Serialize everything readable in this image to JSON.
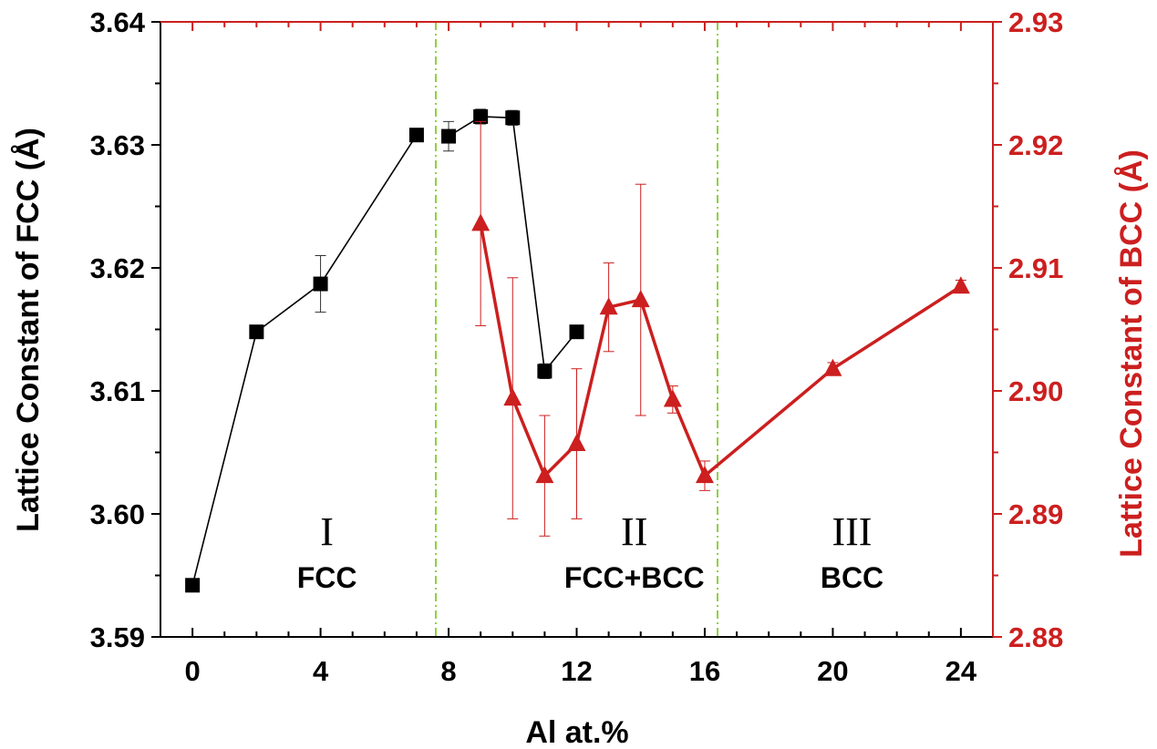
{
  "chart_data": {
    "type": "line",
    "xlabel": "Al at.%",
    "ylabel_left": "Lattice Constant of FCC (Å)",
    "ylabel_right": "Lattice Constant of BCC (Å)",
    "xlim": [
      -1,
      25
    ],
    "ylim_left": [
      3.59,
      3.64
    ],
    "ylim_right": [
      2.88,
      2.93
    ],
    "x_ticks": [
      "0",
      "4",
      "8",
      "12",
      "16",
      "20",
      "24"
    ],
    "y_ticks_left": [
      "3.59",
      "3.60",
      "3.61",
      "3.62",
      "3.63",
      "3.64"
    ],
    "y_ticks_right": [
      "2.88",
      "2.89",
      "2.90",
      "2.91",
      "2.92",
      "2.93"
    ],
    "grid": false,
    "divider_x": [
      7.6,
      16.4
    ],
    "regions": [
      {
        "numeral": "I",
        "phase": "FCC",
        "x": 4.2
      },
      {
        "numeral": "II",
        "phase": "FCC+BCC",
        "x": 13.8
      },
      {
        "numeral": "III",
        "phase": "BCC",
        "x": 20.6
      }
    ],
    "series": [
      {
        "axis": "left",
        "marker": "square",
        "color": "#000000",
        "segments": [
          [
            0,
            1,
            2,
            3
          ],
          [
            4,
            5,
            6,
            7,
            8
          ]
        ],
        "points": [
          {
            "x": 0,
            "y": 3.5942,
            "err": 0.0004
          },
          {
            "x": 2,
            "y": 3.6148,
            "err": 0.0004
          },
          {
            "x": 4,
            "y": 3.6187,
            "err": 0.0023
          },
          {
            "x": 7,
            "y": 3.6308,
            "err": 0.0005
          },
          {
            "x": 8,
            "y": 3.6307,
            "err": 0.0012
          },
          {
            "x": 9,
            "y": 3.6323,
            "err": 0.0006
          },
          {
            "x": 10,
            "y": 3.6322,
            "err": 0.0006
          },
          {
            "x": 11,
            "y": 3.6116,
            "err": 0.0006
          },
          {
            "x": 12,
            "y": 3.6148,
            "err": 0.0003
          }
        ]
      },
      {
        "axis": "right",
        "marker": "triangle",
        "color": "#cc1f1f",
        "segments": [
          [
            0,
            1,
            2,
            3,
            4,
            5,
            6,
            7,
            8,
            9
          ]
        ],
        "points": [
          {
            "x": 9,
            "y": 2.9136,
            "err": 0.0083
          },
          {
            "x": 10,
            "y": 2.8994,
            "err": 0.0098
          },
          {
            "x": 11,
            "y": 2.8931,
            "err": 0.0049
          },
          {
            "x": 12,
            "y": 2.8957,
            "err": 0.0061
          },
          {
            "x": 13,
            "y": 2.9068,
            "err": 0.0036
          },
          {
            "x": 14,
            "y": 2.9074,
            "err": 0.0094
          },
          {
            "x": 15,
            "y": 2.8993,
            "err": 0.0011
          },
          {
            "x": 16,
            "y": 2.8931,
            "err": 0.0012
          },
          {
            "x": 20,
            "y": 2.9018,
            "err": 0.0005
          },
          {
            "x": 24,
            "y": 2.9085,
            "err": 0.0005
          }
        ]
      }
    ]
  },
  "colors": {
    "left_axis": "#000000",
    "right_axis": "#cc1f1f",
    "divider": "#8fd13f"
  }
}
